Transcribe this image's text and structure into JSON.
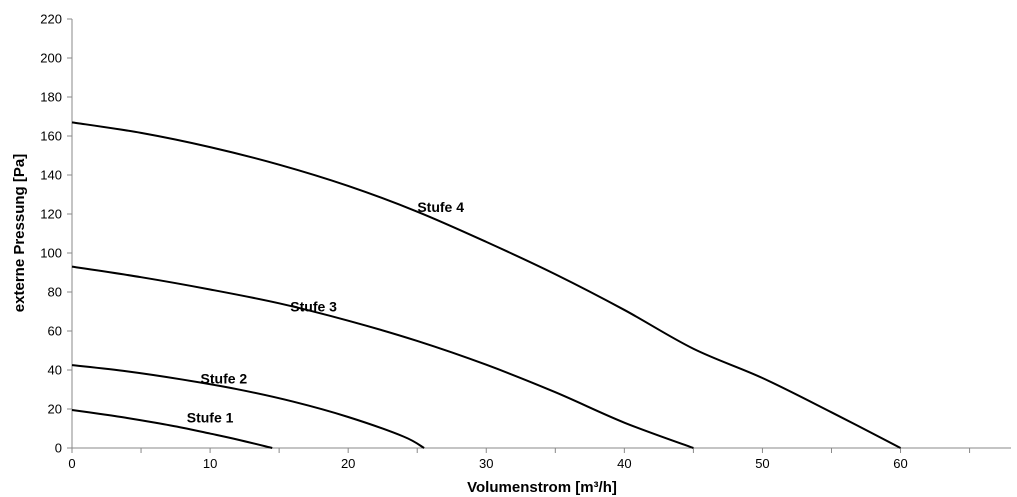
{
  "chart_data": {
    "type": "line",
    "title": "",
    "xlabel": "Volumenstrom [m³/h]",
    "ylabel": "externe Pressung [Pa]",
    "xlim": [
      0,
      68
    ],
    "ylim": [
      0,
      220
    ],
    "x_ticks": [
      0,
      10,
      20,
      30,
      40,
      50,
      60
    ],
    "y_ticks": [
      0,
      20,
      40,
      60,
      80,
      100,
      120,
      140,
      160,
      180,
      200,
      220
    ],
    "grid": false,
    "legend": "none",
    "line_color": "#000000",
    "series": [
      {
        "name": "Stufe 1",
        "x": [
          0,
          2,
          4,
          6,
          8,
          10,
          12,
          14.5
        ],
        "y": [
          19.5,
          17.5,
          15.4,
          13.0,
          10.4,
          7.4,
          4.3,
          0
        ],
        "label": {
          "text": "Stufe 1",
          "x": 10,
          "y": 13
        }
      },
      {
        "name": "Stufe 2",
        "x": [
          0,
          4,
          8,
          12,
          16,
          20,
          24,
          25.5
        ],
        "y": [
          42.5,
          39.3,
          35.1,
          30.1,
          23.8,
          15.9,
          5.9,
          0
        ],
        "label": {
          "text": "Stufe 2",
          "x": 11,
          "y": 33
        }
      },
      {
        "name": "Stufe 3",
        "x": [
          0,
          5,
          10,
          15,
          20,
          25,
          30,
          35,
          40,
          45
        ],
        "y": [
          93,
          87.6,
          81.3,
          74.2,
          65.3,
          54.9,
          42.7,
          28.6,
          13.0,
          0
        ],
        "label": {
          "text": "Stufe 3",
          "x": 17.5,
          "y": 70
        }
      },
      {
        "name": "Stufe 4",
        "x": [
          0,
          5,
          10,
          15,
          20,
          25,
          30,
          35,
          40,
          45,
          50,
          55,
          60
        ],
        "y": [
          167,
          161.6,
          154.3,
          145.3,
          134.4,
          121.2,
          105.7,
          89.1,
          70.8,
          50.9,
          35.9,
          18.3,
          0
        ],
        "label": {
          "text": "Stufe 4",
          "x": 26.7,
          "y": 121
        }
      }
    ]
  }
}
